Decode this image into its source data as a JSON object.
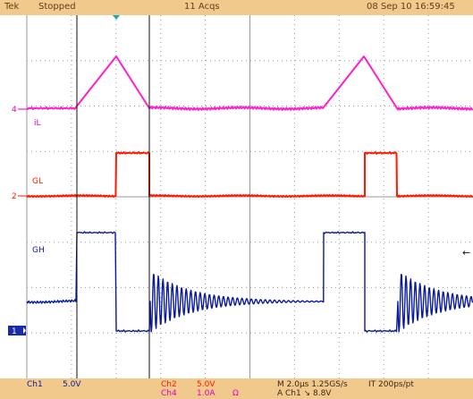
{
  "status": {
    "brand": "Tek",
    "run_state": "Stopped",
    "acquisitions": "11 Acqs",
    "datetime": "08 Sep 10 16:59:45"
  },
  "channels": {
    "ch4_marker": "4",
    "ch2_marker": "2",
    "ch1_marker": "1",
    "il_label": "iL",
    "gl_label": "GL",
    "gh_label": "GH"
  },
  "readout": {
    "ch1_name": "Ch1",
    "ch1_scale": "5.0V",
    "ch2_name": "Ch2",
    "ch2_scale": "5.0V",
    "ch4_name": "Ch4",
    "ch4_scale": "1.0A",
    "ch4_unit": "Ω",
    "timebase": "M 2.0μs 1.25GS/s",
    "record": "IT 200ps/pt",
    "trigger": "A  Ch1  ↘  8.8V"
  },
  "colors": {
    "ch1": "#0a1a9a",
    "ch2": "#ff1a00",
    "ch4": "#ff20c8",
    "graticule": "#9a9a9a",
    "bar": "#f1c98c"
  }
}
